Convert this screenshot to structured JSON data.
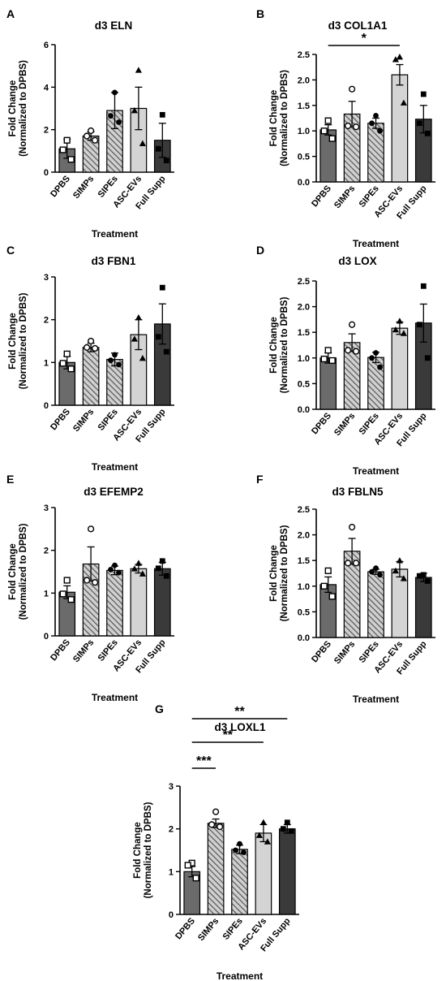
{
  "chart_data": [
    {
      "panel": "A",
      "type": "bar",
      "title": "d3 ELN",
      "xlabel": "Treatment",
      "ylabel": [
        "Fold Change",
        "(Normalized to DPBS)"
      ],
      "categories": [
        "DPBS",
        "SIMPs",
        "SIPEs",
        "ASC-EVs",
        "Full Supp"
      ],
      "values": [
        1.1,
        1.7,
        2.9,
        3.0,
        1.5
      ],
      "errors": [
        0.45,
        0.2,
        0.85,
        1.0,
        0.8
      ],
      "points": [
        [
          1.5,
          1.05,
          0.6
        ],
        [
          1.95,
          1.7,
          1.5
        ],
        [
          3.75,
          2.65,
          2.35
        ],
        [
          4.8,
          2.9,
          1.35
        ],
        [
          2.7,
          1.1,
          0.55
        ]
      ],
      "ylim": [
        0,
        6
      ],
      "yticks": [
        0,
        2,
        4,
        6
      ],
      "significance": []
    },
    {
      "panel": "B",
      "type": "bar",
      "title": "d3 COL1A1",
      "xlabel": "Treatment",
      "ylabel": [
        "Fold Change",
        "(Normalized to DPBS)"
      ],
      "categories": [
        "DPBS",
        "SIMPs",
        "SIPEs",
        "ASC-EVs",
        "Full Supp"
      ],
      "values": [
        1.02,
        1.33,
        1.15,
        2.1,
        1.23
      ],
      "errors": [
        0.1,
        0.25,
        0.1,
        0.2,
        0.27
      ],
      "points": [
        [
          1.2,
          1.0,
          0.85
        ],
        [
          1.82,
          1.1,
          1.08
        ],
        [
          1.3,
          1.15,
          1.0
        ],
        [
          2.45,
          2.4,
          1.55
        ],
        [
          1.72,
          1.15,
          0.95
        ]
      ],
      "ylim": [
        0,
        2.5
      ],
      "yticks": [
        0.0,
        0.5,
        1.0,
        1.5,
        2.0,
        2.5
      ],
      "significance": [
        {
          "from": 0,
          "to": 3,
          "label": "*"
        }
      ]
    },
    {
      "panel": "C",
      "type": "bar",
      "title": "d3 FBN1",
      "xlabel": "Treatment",
      "ylabel": [
        "Fold Change",
        "(Normalized to DPBS)"
      ],
      "categories": [
        "DPBS",
        "SIMPs",
        "SIPEs",
        "ASC-EVs",
        "Full Supp"
      ],
      "values": [
        1.0,
        1.35,
        1.07,
        1.65,
        1.9
      ],
      "errors": [
        0.15,
        0.1,
        0.15,
        0.35,
        0.47
      ],
      "points": [
        [
          1.2,
          0.98,
          0.85
        ],
        [
          1.5,
          1.35,
          1.33
        ],
        [
          1.18,
          1.05,
          0.95
        ],
        [
          2.05,
          1.55,
          1.1
        ],
        [
          2.75,
          1.6,
          1.25
        ]
      ],
      "ylim": [
        0,
        3
      ],
      "yticks": [
        0,
        1,
        2,
        3
      ],
      "significance": []
    },
    {
      "panel": "D",
      "type": "bar",
      "title": "d3 LOX",
      "xlabel": "Treatment",
      "ylabel": [
        "Fold Change",
        "(Normalized to DPBS)"
      ],
      "categories": [
        "DPBS",
        "SIMPs",
        "SIPEs",
        "ASC-EVs",
        "Full Supp"
      ],
      "values": [
        1.0,
        1.3,
        1.01,
        1.58,
        1.68
      ],
      "errors": [
        0.1,
        0.17,
        0.1,
        0.12,
        0.37
      ],
      "points": [
        [
          1.15,
          0.98,
          0.95
        ],
        [
          1.65,
          1.15,
          1.13
        ],
        [
          1.1,
          1.0,
          0.82
        ],
        [
          1.72,
          1.55,
          1.48
        ],
        [
          2.4,
          1.65,
          1.0
        ]
      ],
      "ylim": [
        0,
        2.5
      ],
      "yticks": [
        0.0,
        0.5,
        1.0,
        1.5,
        2.0,
        2.5
      ],
      "significance": []
    },
    {
      "panel": "E",
      "type": "bar",
      "title": "d3 EFEMP2",
      "xlabel": "Treatment",
      "ylabel": [
        "Fold Change",
        "(Normalized to DPBS)"
      ],
      "categories": [
        "DPBS",
        "SIMPs",
        "SIPEs",
        "ASC-EVs",
        "Full Supp"
      ],
      "values": [
        1.02,
        1.68,
        1.53,
        1.57,
        1.57
      ],
      "errors": [
        0.15,
        0.4,
        0.1,
        0.1,
        0.15
      ],
      "points": [
        [
          1.3,
          0.98,
          0.85
        ],
        [
          2.5,
          1.3,
          1.25
        ],
        [
          1.65,
          1.55,
          1.48
        ],
        [
          1.7,
          1.57,
          1.45
        ],
        [
          1.75,
          1.58,
          1.4
        ]
      ],
      "ylim": [
        0,
        3
      ],
      "yticks": [
        0,
        1,
        2,
        3
      ],
      "significance": []
    },
    {
      "panel": "F",
      "type": "bar",
      "title": "d3 FBLN5",
      "xlabel": "Treatment",
      "ylabel": [
        "Fold Change",
        "(Normalized to DPBS)"
      ],
      "categories": [
        "DPBS",
        "SIMPs",
        "SIPEs",
        "ASC-EVs",
        "Full Supp"
      ],
      "values": [
        1.03,
        1.68,
        1.28,
        1.33,
        1.17
      ],
      "errors": [
        0.15,
        0.25,
        0.05,
        0.15,
        0.08
      ],
      "points": [
        [
          1.3,
          1.0,
          0.8
        ],
        [
          2.15,
          1.45,
          1.45
        ],
        [
          1.35,
          1.28,
          1.22
        ],
        [
          1.5,
          1.3,
          1.15
        ],
        [
          1.22,
          1.2,
          1.1
        ]
      ],
      "ylim": [
        0,
        2.5
      ],
      "yticks": [
        0.0,
        0.5,
        1.0,
        1.5,
        2.0,
        2.5
      ],
      "significance": []
    },
    {
      "panel": "G",
      "type": "bar",
      "title": "d3 LOXL1",
      "xlabel": "Treatment",
      "ylabel": [
        "Fold Change",
        "(Normalized to DPBS)"
      ],
      "categories": [
        "DPBS",
        "SIMPs",
        "SIPEs",
        "ASC-EVs",
        "Full Supp"
      ],
      "values": [
        1.0,
        2.13,
        1.52,
        1.9,
        2.0
      ],
      "errors": [
        0.12,
        0.1,
        0.1,
        0.2,
        0.1
      ],
      "points": [
        [
          1.2,
          1.15,
          0.85
        ],
        [
          2.4,
          2.1,
          2.05
        ],
        [
          1.65,
          1.5,
          1.45
        ],
        [
          2.15,
          1.85,
          1.7
        ],
        [
          2.15,
          2.0,
          1.95
        ]
      ],
      "ylim": [
        0,
        3
      ],
      "yticks": [
        0,
        1,
        2,
        3
      ],
      "significance": [
        {
          "from": 0,
          "to": 1,
          "label": "***"
        },
        {
          "from": 0,
          "to": 3,
          "label": "**"
        },
        {
          "from": 0,
          "to": 4,
          "label": "**"
        }
      ]
    }
  ],
  "style": {
    "bar_fills": [
      "#6b6b6b",
      "#c9c9c9",
      "#555555",
      "#d4d4d4",
      "#3a3a3a"
    ],
    "bar_hatch": [
      false,
      true,
      true,
      false,
      false
    ],
    "marker_shapes": [
      "square-open",
      "circle-open",
      "circle-filled",
      "triangle-filled",
      "square-filled"
    ],
    "ink": "#000000"
  }
}
